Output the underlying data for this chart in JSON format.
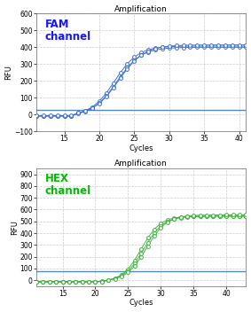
{
  "top": {
    "title": "Amplification",
    "label": "FAM\nchannel",
    "label_color": "#1515FF",
    "line_color": "#3366CC",
    "marker_color": "#3366CC",
    "threshold_color": "#5588BB",
    "threshold_y": 30,
    "xlabel": "Cycles",
    "ylabel": "RFU",
    "xlim": [
      11,
      41
    ],
    "ylim": [
      -100,
      600
    ],
    "yticks": [
      -100,
      0,
      100,
      200,
      300,
      400,
      500,
      600
    ],
    "xticks": [
      15,
      20,
      25,
      30,
      35,
      40
    ],
    "curves": [
      {
        "mid": 22.2,
        "k": 0.6,
        "max": 415,
        "base": -8
      },
      {
        "mid": 22.5,
        "k": 0.58,
        "max": 410,
        "base": -10
      },
      {
        "mid": 22.8,
        "k": 0.56,
        "max": 420,
        "base": -6
      }
    ]
  },
  "bottom": {
    "title": "Amplification",
    "label": "HEX\nchannel",
    "label_color": "#00BB00",
    "line_color": "#33AA33",
    "marker_color": "#33AA33",
    "threshold_color": "#5588BB",
    "threshold_y": 75,
    "xlabel": "Cycles",
    "ylabel": "RFU",
    "xlim": [
      11,
      43
    ],
    "ylim": [
      -50,
      950
    ],
    "yticks": [
      0,
      100,
      200,
      300,
      400,
      500,
      600,
      700,
      800,
      900
    ],
    "xticks": [
      15,
      20,
      25,
      30,
      35,
      40
    ],
    "curves": [
      {
        "mid": 27.0,
        "k": 0.7,
        "max": 560,
        "base": -15
      },
      {
        "mid": 27.4,
        "k": 0.68,
        "max": 555,
        "base": -12
      },
      {
        "mid": 27.8,
        "k": 0.66,
        "max": 565,
        "base": -10
      }
    ]
  },
  "bg_color": "#FFFFFF",
  "grid_color": "#CCCCCC",
  "title_fontsize": 6.5,
  "label_fontsize": 8.5,
  "tick_fontsize": 5.5,
  "axis_label_fontsize": 6.0
}
